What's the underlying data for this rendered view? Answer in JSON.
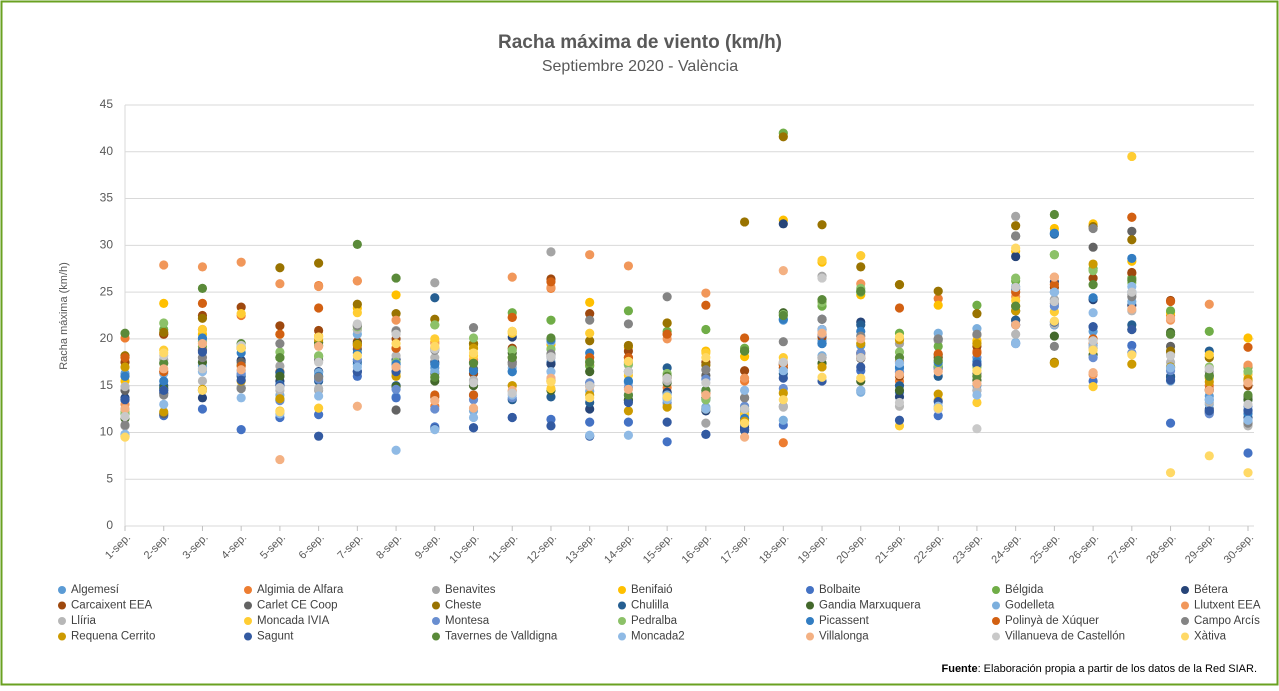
{
  "chart_data": {
    "type": "scatter",
    "title": "Racha máxima de viento (km/h)",
    "subtitle": "Septiembre 2020 - València",
    "y_label": "Racha máxima (km/h)",
    "categories": [
      "1-sep.",
      "2-sep.",
      "3-sep.",
      "4-sep.",
      "5-sep.",
      "6-sep.",
      "7-sep.",
      "8-sep.",
      "9-sep.",
      "10-sep.",
      "11-sep.",
      "12-sep.",
      "13-sep.",
      "14-sep.",
      "15-sep.",
      "16-sep.",
      "17-sep.",
      "18-sep.",
      "19-sep.",
      "20-sep.",
      "21-sep.",
      "22-sep.",
      "23-sep.",
      "24-sep.",
      "25-sep.",
      "26-sep.",
      "27-sep.",
      "28-sep.",
      "29-sep.",
      "30-sep."
    ],
    "ylim": [
      0,
      45
    ],
    "yticks": [
      0,
      5,
      10,
      15,
      20,
      25,
      30,
      35,
      40,
      45
    ],
    "grid": true,
    "series": [
      {
        "name": "Algemesí",
        "color": "#5b9bd5",
        "values": [
          16.3,
          14.8,
          17.1,
          16.2,
          13.5,
          16.0,
          17.3,
          13.8,
          16.9,
          16.3,
          16.5,
          17.5,
          15.0,
          15.5,
          14.2,
          13.5,
          12.3,
          22.0,
          19.8,
          19.3,
          16.8,
          17.0,
          15.0,
          25.6,
          25.0,
          20.8,
          25.0,
          18.5,
          13.9,
          13.5
        ]
      },
      {
        "name": "Algimia de Alfara",
        "color": "#ed7d31",
        "values": [
          20.1,
          20.5,
          21.0,
          22.5,
          16.5,
          25.7,
          26.2,
          19.0,
          12.8,
          17.5,
          22.3,
          25.4,
          17.2,
          18.0,
          14.8,
          14.2,
          15.5,
          8.9,
          20.5,
          18.5,
          15.5,
          24.3,
          18.7,
          23.5,
          21.5,
          19.5,
          27.0,
          22.5,
          15.0,
          17.0
        ]
      },
      {
        "name": "Benavites",
        "color": "#a5a5a5",
        "values": [
          10.7,
          17.8,
          18.7,
          14.7,
          17.1,
          14.5,
          21.5,
          20.9,
          26.0,
          15.5,
          14.4,
          29.3,
          15.3,
          17.5,
          15.9,
          11.0,
          12.5,
          12.8,
          26.7,
          18.3,
          19.5,
          19.8,
          20.4,
          33.1,
          24.2,
          19.0,
          24.8,
          18.5,
          16.5,
          10.8
        ]
      },
      {
        "name": "Benifaió",
        "color": "#ffc000",
        "values": [
          15.5,
          23.8,
          20.5,
          19.0,
          20.5,
          20.3,
          23.3,
          24.7,
          19.7,
          19.4,
          20.8,
          19.4,
          23.9,
          19.1,
          21.7,
          18.7,
          18.1,
          32.7,
          28.2,
          24.7,
          25.8,
          23.6,
          19.8,
          29.4,
          31.8,
          32.3,
          28.3,
          22.8,
          15.8,
          20.1
        ]
      },
      {
        "name": "Bolbaite",
        "color": "#4472c4",
        "values": [
          9.6,
          11.8,
          12.5,
          10.3,
          11.6,
          11.9,
          16.0,
          13.7,
          10.6,
          10.5,
          11.6,
          11.4,
          11.1,
          11.1,
          9.0,
          9.8,
          10.8,
          10.8,
          19.5,
          16.6,
          14.3,
          11.8,
          14.5,
          19.5,
          21.5,
          15.5,
          19.3,
          11.0,
          12.3,
          7.8
        ]
      },
      {
        "name": "Bélgida",
        "color": "#70ad47",
        "values": [
          12.0,
          21.0,
          19.2,
          17.2,
          18.0,
          18.1,
          21.0,
          16.5,
          21.5,
          19.5,
          22.8,
          22.0,
          17.1,
          23.0,
          20.8,
          21.0,
          19.0,
          42.0,
          23.5,
          25.0,
          20.6,
          19.2,
          23.6,
          26.2,
          29.0,
          27.5,
          26.5,
          23.0,
          20.8,
          17.0
        ]
      },
      {
        "name": "Bétera",
        "color": "#264478",
        "values": [
          13.7,
          14.2,
          13.7,
          17.7,
          15.5,
          16.5,
          16.5,
          17.8,
          17.5,
          17.5,
          20.2,
          17.3,
          12.5,
          13.4,
          14.3,
          12.3,
          10.5,
          32.3,
          22.1,
          21.8,
          13.8,
          17.0,
          17.2,
          28.8,
          26.1,
          24.2,
          23.6,
          16.0,
          12.5,
          11.6
        ]
      },
      {
        "name": "Carcaixent EEA",
        "color": "#9e480e",
        "values": [
          17.5,
          20.5,
          22.5,
          23.4,
          21.4,
          20.9,
          19.7,
          20.0,
          13.8,
          16.3,
          19.0,
          26.4,
          22.7,
          18.7,
          20.5,
          17.5,
          16.6,
          16.9,
          20.2,
          18.5,
          16.0,
          18.0,
          19.2,
          22.0,
          25.5,
          26.5,
          27.1,
          24.1,
          14.5,
          15.0
        ]
      },
      {
        "name": "Carlet CE Coop",
        "color": "#636363",
        "values": [
          14.5,
          12.0,
          18.8,
          17.5,
          16.0,
          17.7,
          18.9,
          12.4,
          16.3,
          16.8,
          17.5,
          18.2,
          15.0,
          16.5,
          15.8,
          16.1,
          13.7,
          17.3,
          18.0,
          17.9,
          17.6,
          20.0,
          16.3,
          31.0,
          23.8,
          29.8,
          31.5,
          19.2,
          12.1,
          13.8
        ]
      },
      {
        "name": "Cheste",
        "color": "#997300",
        "values": [
          18.2,
          20.7,
          22.2,
          19.0,
          27.6,
          28.1,
          23.7,
          22.7,
          22.1,
          19.5,
          18.0,
          15.5,
          19.8,
          19.3,
          21.7,
          17.2,
          32.5,
          41.6,
          32.2,
          27.7,
          25.8,
          25.1,
          22.7,
          32.1,
          17.5,
          32.0,
          30.6,
          18.7,
          18.0,
          15.5
        ]
      },
      {
        "name": "Chulilla",
        "color": "#255e91",
        "values": [
          13.5,
          15.0,
          14.5,
          16.0,
          16.4,
          15.5,
          17.6,
          15.0,
          24.4,
          14.0,
          13.5,
          13.8,
          13.2,
          14.0,
          16.9,
          12.5,
          10.2,
          16.3,
          21.0,
          21.5,
          15.0,
          16.0,
          17.1,
          22.0,
          31.2,
          21.3,
          21.5,
          15.9,
          18.7,
          12.4
        ]
      },
      {
        "name": "Gandia Marxuquera",
        "color": "#43682b",
        "values": [
          11.5,
          14.7,
          17.5,
          14.8,
          16.0,
          19.6,
          19.5,
          14.9,
          15.5,
          15.0,
          18.5,
          14.5,
          16.5,
          13.5,
          15.3,
          13.7,
          18.7,
          22.8,
          17.4,
          15.5,
          14.5,
          18.3,
          15.6,
          23.0,
          20.3,
          18.3,
          21.0,
          20.7,
          16.1,
          13.5
        ]
      },
      {
        "name": "Godelleta",
        "color": "#7cafdd",
        "values": [
          12.5,
          16.3,
          16.8,
          16.6,
          14.0,
          16.4,
          20.5,
          17.0,
          16.5,
          12.3,
          16.9,
          19.7,
          14.4,
          15.3,
          14.0,
          12.7,
          12.2,
          11.3,
          18.2,
          14.3,
          16.5,
          20.6,
          21.1,
          19.6,
          21.5,
          19.3,
          24.0,
          15.5,
          13.0,
          11.2
        ]
      },
      {
        "name": "Llutxent EEA",
        "color": "#f1975a",
        "values": [
          13.0,
          27.9,
          27.7,
          28.2,
          25.9,
          25.6,
          26.2,
          22.0,
          19.5,
          17.8,
          26.6,
          25.5,
          29.0,
          27.8,
          20.0,
          24.9,
          15.8,
          17.5,
          24.0,
          25.9,
          17.5,
          16.8,
          16.0,
          24.5,
          26.6,
          16.2,
          33.0,
          22.0,
          23.7,
          17.2
        ]
      },
      {
        "name": "Llíria",
        "color": "#b7b7b7",
        "values": [
          14.9,
          17.4,
          15.5,
          14.8,
          14.5,
          14.7,
          21.0,
          18.2,
          18.0,
          15.6,
          15.0,
          18.0,
          15.0,
          17.2,
          15.5,
          12.5,
          12.0,
          12.7,
          18.0,
          14.5,
          12.8,
          12.5,
          14.5,
          20.5,
          21.6,
          19.0,
          23.0,
          17.5,
          13.2,
          10.7
        ]
      },
      {
        "name": "Moncada IVIA",
        "color": "#ffcd33",
        "values": [
          9.6,
          18.8,
          21.0,
          22.7,
          12.3,
          12.6,
          22.8,
          16.3,
          20.0,
          18.2,
          20.6,
          14.7,
          20.6,
          16.1,
          13.0,
          18.5,
          11.9,
          18.0,
          28.4,
          28.9,
          10.7,
          13.5,
          13.2,
          24.1,
          22.9,
          14.9,
          39.5,
          16.8,
          18.3,
          16.2
        ]
      },
      {
        "name": "Montesa",
        "color": "#698ed0",
        "values": [
          9.8,
          14.5,
          20.0,
          16.3,
          13.4,
          15.7,
          17.8,
          14.6,
          12.5,
          13.5,
          13.7,
          18.1,
          15.3,
          14.8,
          13.2,
          15.7,
          12.8,
          14.7,
          20.5,
          18.5,
          16.4,
          16.8,
          18.0,
          21.5,
          23.5,
          18.0,
          18.5,
          16.6,
          12.0,
          12.8
        ]
      },
      {
        "name": "Pedralba",
        "color": "#8cc168",
        "values": [
          12.2,
          21.7,
          19.7,
          19.2,
          18.6,
          18.2,
          21.3,
          17.5,
          21.5,
          20.1,
          18.8,
          18.9,
          17.6,
          17.3,
          16.3,
          13.5,
          12.5,
          22.6,
          23.9,
          25.4,
          18.6,
          17.2,
          17.0,
          26.5,
          29.0,
          27.3,
          26.0,
          17.0,
          17.0,
          16.5
        ]
      },
      {
        "name": "Picassent",
        "color": "#327dc2",
        "values": [
          16.0,
          15.5,
          20.1,
          18.5,
          15.1,
          16.0,
          18.5,
          17.3,
          17.3,
          16.6,
          16.5,
          19.9,
          18.5,
          15.5,
          13.7,
          14.5,
          11.5,
          22.1,
          19.5,
          20.8,
          17.0,
          17.5,
          17.6,
          25.3,
          31.3,
          24.4,
          28.6,
          17.0,
          13.5,
          12.0
        ]
      },
      {
        "name": "Polinyà de Xúquer",
        "color": "#d26012",
        "values": [
          18.0,
          16.5,
          23.8,
          17.1,
          20.5,
          23.3,
          19.3,
          19.0,
          14.0,
          14.0,
          22.3,
          26.1,
          18.0,
          18.0,
          20.5,
          23.6,
          20.1,
          17.2,
          21.0,
          18.0,
          23.3,
          18.4,
          18.5,
          25.0,
          25.8,
          20.0,
          33.0,
          24.0,
          14.6,
          19.1
        ]
      },
      {
        "name": "Campo Arcís",
        "color": "#848484",
        "values": [
          10.8,
          14.0,
          18.0,
          14.7,
          19.5,
          15.9,
          21.4,
          20.8,
          18.8,
          21.2,
          17.3,
          18.4,
          22.0,
          21.6,
          24.5,
          16.7,
          13.7,
          19.7,
          22.1,
          20.3,
          20.0,
          20.0,
          20.5,
          31.0,
          19.2,
          31.8,
          24.5,
          20.5,
          14.5,
          11.0
        ]
      },
      {
        "name": "Requena Cerrito",
        "color": "#cc9a00",
        "values": [
          17.0,
          12.2,
          14.6,
          15.5,
          13.6,
          19.9,
          19.4,
          16.0,
          19.0,
          19.0,
          15.0,
          15.5,
          14.0,
          12.3,
          12.7,
          12.5,
          11.2,
          14.2,
          17.0,
          19.5,
          19.9,
          14.1,
          19.5,
          23.0,
          17.4,
          28.0,
          17.3,
          17.0,
          15.4,
          15.7
        ]
      },
      {
        "name": "Sagunt",
        "color": "#335aa1",
        "values": [
          13.5,
          14.5,
          18.6,
          15.6,
          15.0,
          9.6,
          16.5,
          16.5,
          10.4,
          10.5,
          11.6,
          10.7,
          9.6,
          13.2,
          11.1,
          9.8,
          10.3,
          15.8,
          15.5,
          17.0,
          11.3,
          13.3,
          17.3,
          21.5,
          21.8,
          21.3,
          21.0,
          15.6,
          12.3,
          12.3
        ]
      },
      {
        "name": "Tavernes de Valldigna",
        "color": "#5a8a39",
        "values": [
          20.6,
          17.4,
          25.4,
          19.5,
          18.0,
          19.3,
          30.1,
          26.5,
          15.9,
          17.4,
          18.0,
          20.1,
          17.5,
          14.0,
          16.0,
          14.5,
          18.7,
          22.5,
          24.2,
          25.1,
          18.0,
          17.7,
          16.0,
          23.5,
          33.3,
          25.8,
          26.3,
          20.5,
          16.0,
          14.0
        ]
      },
      {
        "name": "Moncada2",
        "color": "#8fbae5",
        "values": [
          9.8,
          13.0,
          16.5,
          13.7,
          12.0,
          13.9,
          17.0,
          8.1,
          10.3,
          11.6,
          14.0,
          16.5,
          9.7,
          9.7,
          13.5,
          12.5,
          14.5,
          16.6,
          21.0,
          14.5,
          17.4,
          12.8,
          14.0,
          19.5,
          25.0,
          22.8,
          25.6,
          16.9,
          13.5,
          11.3
        ]
      },
      {
        "name": "Villalonga",
        "color": "#f4b183",
        "values": [
          12.5,
          16.8,
          19.5,
          16.7,
          7.1,
          19.2,
          12.8,
          17.0,
          13.4,
          12.6,
          14.5,
          15.8,
          14.9,
          14.6,
          15.8,
          14.0,
          9.5,
          27.3,
          20.6,
          20.0,
          16.2,
          16.5,
          15.2,
          21.5,
          26.6,
          16.4,
          23.2,
          22.2,
          14.5,
          15.3
        ]
      },
      {
        "name": "Villanueva de Castellón",
        "color": "#c9c9c9",
        "values": [
          11.7,
          18.2,
          16.8,
          19.3,
          14.8,
          17.5,
          21.6,
          20.5,
          18.9,
          15.3,
          14.2,
          18.1,
          15.0,
          16.5,
          15.8,
          15.3,
          12.5,
          17.5,
          26.5,
          18.0,
          13.2,
          12.5,
          10.4,
          25.5,
          24.0,
          19.8,
          25.0,
          18.2,
          16.8,
          13.0
        ]
      },
      {
        "name": "Xàtiva",
        "color": "#ffd966",
        "values": [
          9.5,
          18.5,
          14.5,
          19.0,
          12.2,
          20.2,
          18.2,
          19.5,
          19.2,
          18.5,
          20.8,
          15.4,
          13.7,
          17.6,
          13.8,
          18.0,
          11.0,
          13.5,
          15.9,
          15.8,
          20.2,
          12.6,
          16.6,
          29.7,
          21.9,
          18.8,
          18.3,
          5.7,
          7.5,
          5.7
        ]
      }
    ],
    "source": {
      "label": "Fuente",
      "text": ": Elaboración propia a partir de los datos de la Red SIAR."
    }
  }
}
